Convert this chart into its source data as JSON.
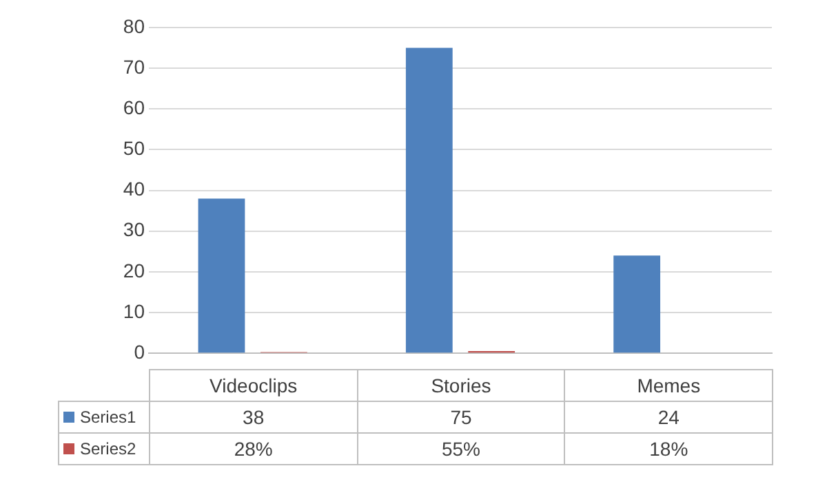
{
  "chart_data": {
    "type": "bar",
    "categories": [
      "Videoclips",
      "Stories",
      "Memes"
    ],
    "series": [
      {
        "name": "Series1",
        "color": "#4f81bd",
        "values": [
          38,
          75,
          24
        ],
        "value_labels": [
          "38",
          "75",
          "24"
        ]
      },
      {
        "name": "Series2",
        "color": "#c0504d",
        "values": [
          0.28,
          0.55,
          0.18
        ],
        "value_labels": [
          "28%",
          "55%",
          "18%"
        ]
      }
    ],
    "ylim": [
      0,
      80
    ],
    "yticks": [
      0,
      10,
      20,
      30,
      40,
      50,
      60,
      70,
      80
    ],
    "grid": "y",
    "legend": "bottom"
  }
}
